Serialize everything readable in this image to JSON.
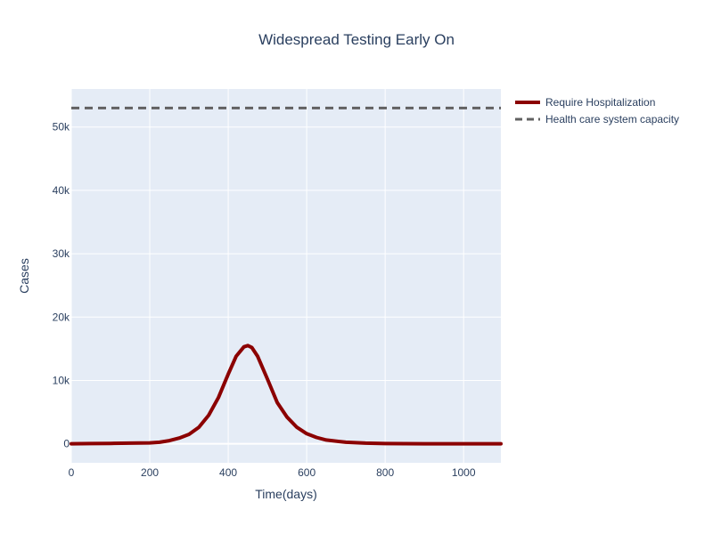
{
  "chart_data": {
    "type": "line",
    "title": "Widespread Testing Early On",
    "xlabel": "Time(days)",
    "ylabel": "Cases",
    "xlim": [
      0,
      1095
    ],
    "ylim": [
      -3000,
      56000
    ],
    "x_ticks": [
      0,
      200,
      400,
      600,
      800,
      1000
    ],
    "x_tick_labels": [
      "0",
      "200",
      "400",
      "600",
      "800",
      "1000"
    ],
    "y_ticks": [
      0,
      10000,
      20000,
      30000,
      40000,
      50000
    ],
    "y_tick_labels": [
      "0",
      "10k",
      "20k",
      "30k",
      "40k",
      "50k"
    ],
    "grid": true,
    "legend_position": "top-right outside",
    "series": [
      {
        "name": "Require Hospitalization",
        "color": "#8b0000",
        "style": "solid",
        "x": [
          0,
          50,
          100,
          150,
          200,
          225,
          250,
          275,
          300,
          325,
          350,
          375,
          400,
          420,
          440,
          450,
          460,
          475,
          500,
          525,
          550,
          575,
          600,
          625,
          650,
          700,
          750,
          800,
          900,
          1000,
          1095
        ],
        "y": [
          0,
          30,
          60,
          100,
          150,
          250,
          500,
          900,
          1500,
          2600,
          4500,
          7300,
          11000,
          13800,
          15300,
          15500,
          15200,
          13800,
          10200,
          6500,
          4200,
          2600,
          1600,
          1000,
          600,
          250,
          100,
          40,
          10,
          3,
          0
        ]
      },
      {
        "name": "Health care system capacity",
        "color": "#616161",
        "style": "dash",
        "x": [
          0,
          1095
        ],
        "y": [
          53000,
          53000
        ]
      }
    ]
  }
}
